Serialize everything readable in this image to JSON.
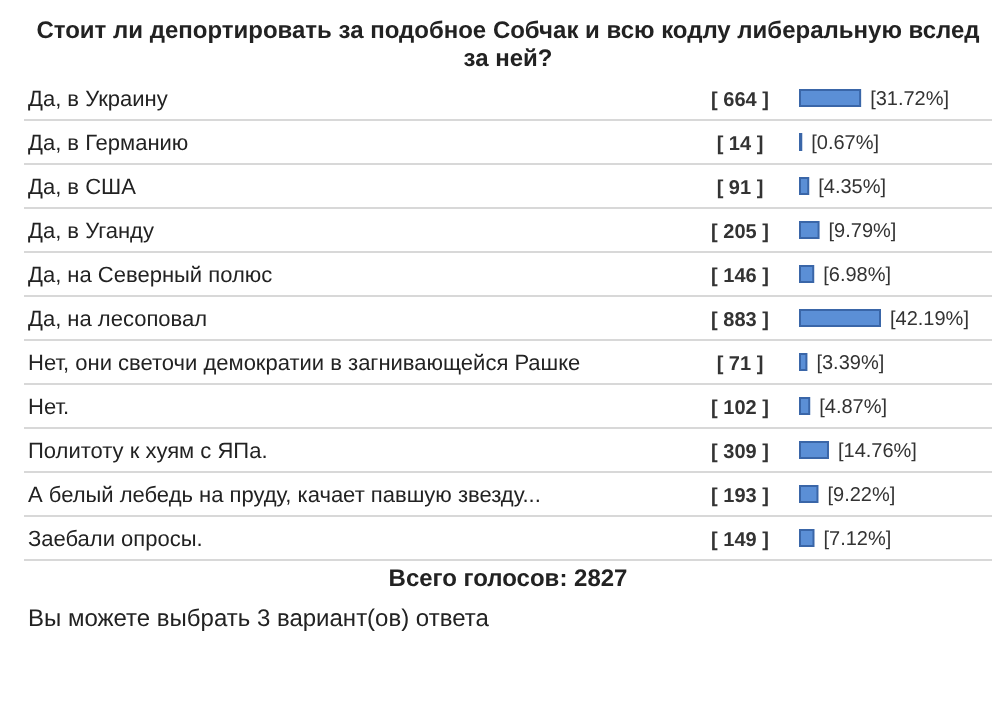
{
  "chart_data": {
    "type": "bar",
    "orientation": "horizontal",
    "title": "Стоит ли депортировать за подобное Собчак и всю кодлу либеральную вслед за ней?",
    "categories": [
      "Да, в Украину",
      "Да, в Германию",
      "Да, в США",
      "Да, в Уганду",
      "Да, на Северный полюс",
      "Да, на лесоповал",
      "Нет, они светочи демократии в загнивающейся Рашке",
      "Нет.",
      "Политоту к хуям с ЯПа.",
      "А белый лебедь на пруду, качает павшую звезду...",
      "Заебали опросы."
    ],
    "values": [
      31.72,
      0.67,
      4.35,
      9.79,
      6.98,
      42.19,
      3.39,
      4.87,
      14.76,
      9.22,
      7.12
    ],
    "color": "#5b8fd6",
    "value_labels": [
      "[31.72%]",
      "[0.67%]",
      "[4.35%]",
      "[9.79%]",
      "[6.98%]",
      "[42.19%]",
      "[3.39%]",
      "[4.87%]",
      "[14.76%]",
      "[9.22%]",
      "[7.12%]"
    ],
    "annotations": [
      "[ 664 ]",
      "[ 14 ]",
      "[ 91 ]",
      "[ 205 ]",
      "[ 146 ]",
      "[ 883 ]",
      "[ 71 ]",
      "[ 102 ]",
      "[ 309 ]",
      "[ 193 ]",
      "[ 149 ]",
      "Всего голосов: 2827",
      "Вы можете выбрать 3 вариант(ов) ответа"
    ]
  }
}
